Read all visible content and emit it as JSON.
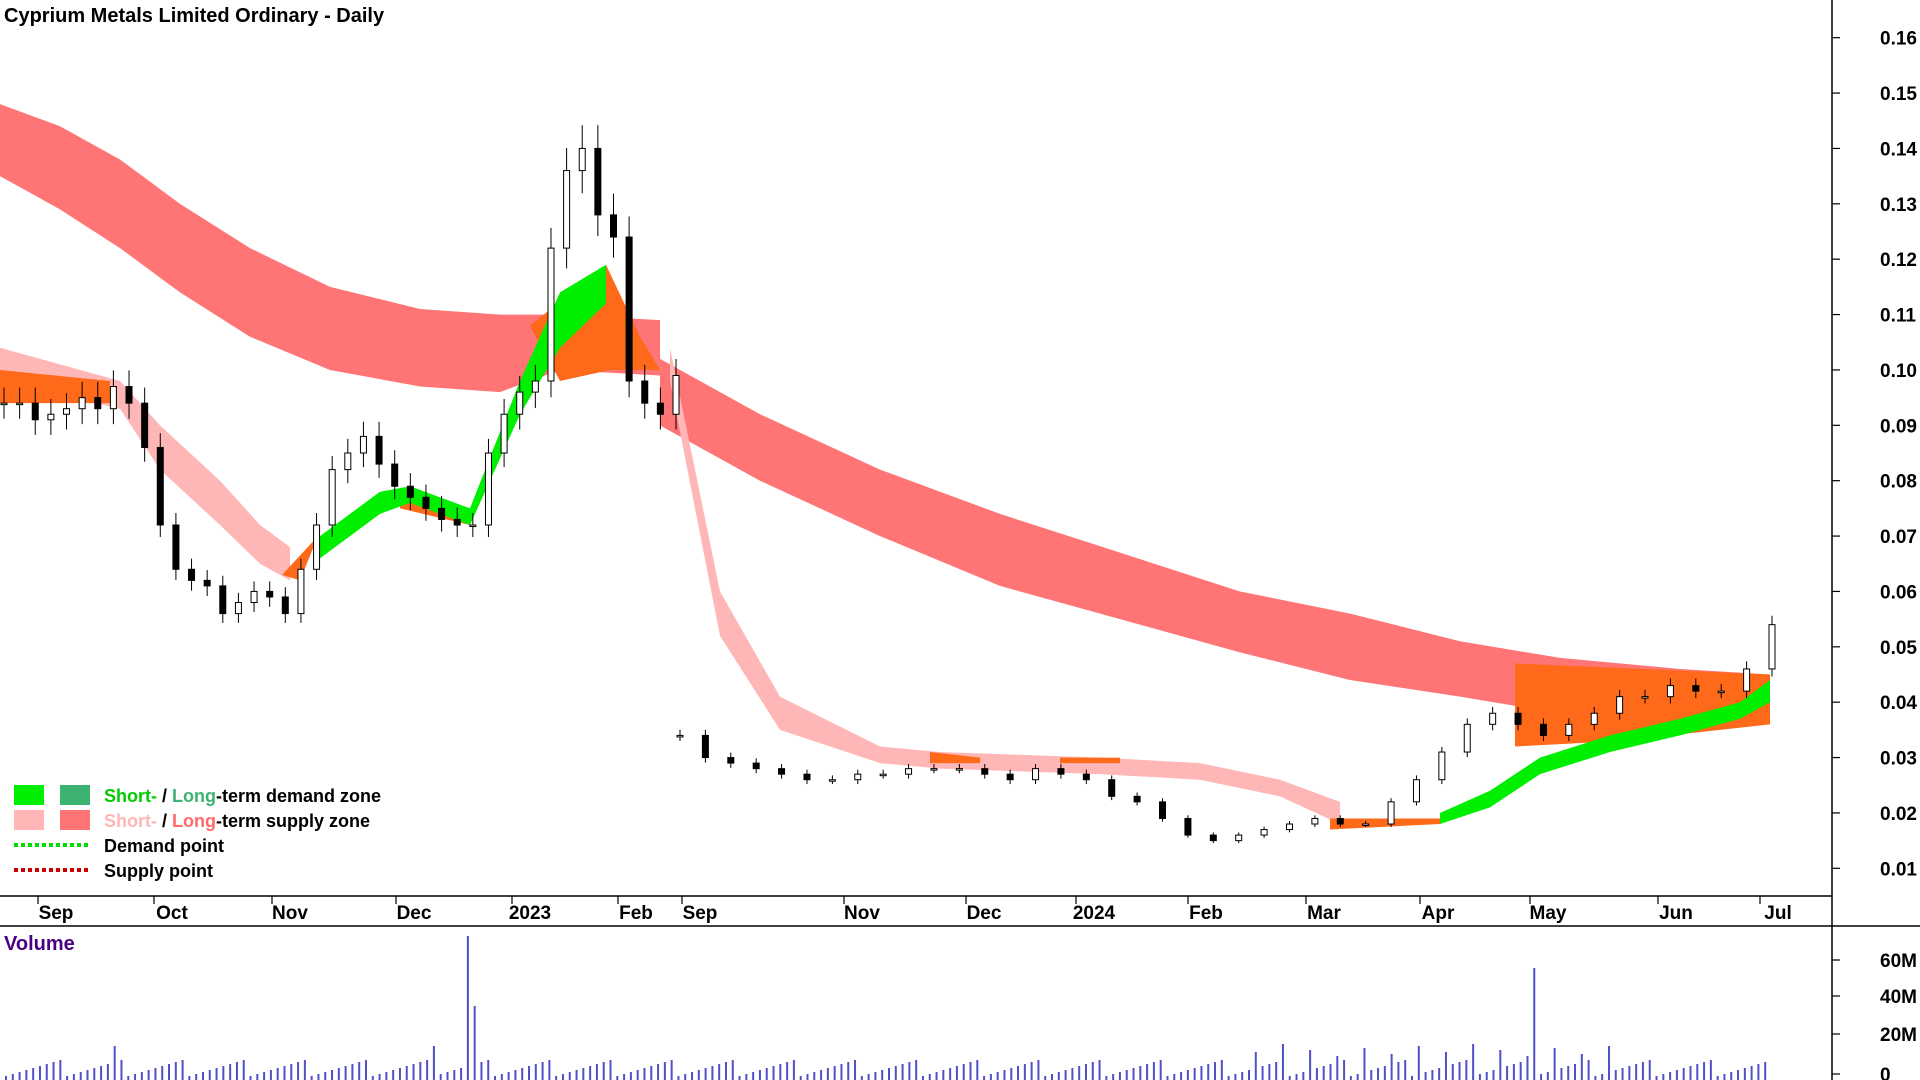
{
  "chart_data": {
    "type": "candlestick",
    "title": "Cyprium Metals Limited Ordinary - Daily",
    "y_axis": {
      "ticks": [
        "0.16",
        "0.15",
        "0.14",
        "0.13",
        "0.12",
        "0.11",
        "0.10",
        "0.09",
        "0.08",
        "0.07",
        "0.06",
        "0.05",
        "0.04",
        "0.03",
        "0.02",
        "0.01"
      ],
      "ylim": [
        0.005,
        0.165
      ],
      "position": "right"
    },
    "x_axis": {
      "ticks": [
        "Sep",
        "Oct",
        "Nov",
        "Dec",
        "2023",
        "Feb",
        "Sep",
        "Nov",
        "Dec",
        "2024",
        "Feb",
        "Mar",
        "Apr",
        "May",
        "Jun",
        "Jul"
      ]
    },
    "price_close_approx": [
      0.094,
      0.094,
      0.091,
      0.092,
      0.093,
      0.095,
      0.093,
      0.097,
      0.094,
      0.086,
      0.072,
      0.064,
      0.062,
      0.061,
      0.056,
      0.058,
      0.06,
      0.059,
      0.056,
      0.064,
      0.072,
      0.082,
      0.085,
      0.088,
      0.083,
      0.079,
      0.077,
      0.075,
      0.073,
      0.072,
      0.072,
      0.085,
      0.092,
      0.096,
      0.098,
      0.122,
      0.136,
      0.14,
      0.128,
      0.124,
      0.098,
      0.094,
      0.092,
      0.099,
      0.034,
      0.03,
      0.029,
      0.028,
      0.027,
      0.026,
      0.026,
      0.027,
      0.027,
      0.028,
      0.028,
      0.028,
      0.027,
      0.026,
      0.028,
      0.027,
      0.026,
      0.023,
      0.022,
      0.019,
      0.016,
      0.015,
      0.016,
      0.017,
      0.018,
      0.019,
      0.018,
      0.018,
      0.022,
      0.026,
      0.031,
      0.036,
      0.038,
      0.036,
      0.034,
      0.036,
      0.038,
      0.041,
      0.041,
      0.043,
      0.042,
      0.042,
      0.046,
      0.054
    ],
    "long_term_supply_zone": {
      "upper": [
        0.148,
        0.144,
        0.138,
        0.13,
        0.122,
        0.115,
        0.111,
        0.11,
        0.11,
        0.109,
        0.102,
        0.092,
        0.082,
        0.074,
        0.067,
        0.06,
        0.056,
        0.051,
        0.048,
        0.046,
        0.045
      ],
      "lower": [
        0.135,
        0.129,
        0.122,
        0.114,
        0.106,
        0.1,
        0.097,
        0.096,
        0.1,
        0.099,
        0.09,
        0.08,
        0.07,
        0.061,
        0.055,
        0.049,
        0.044,
        0.041,
        0.038,
        0.037,
        0.036
      ]
    },
    "short_term_supply_zone": {
      "upper": [
        0.104,
        0.098,
        0.09,
        0.08,
        0.072,
        0.068,
        0.104,
        0.06,
        0.041,
        0.032,
        0.031,
        0.03,
        0.029,
        0.026,
        0.022
      ],
      "lower": [
        0.098,
        0.093,
        0.082,
        0.072,
        0.065,
        0.062,
        0.098,
        0.052,
        0.035,
        0.029,
        0.028,
        0.027,
        0.026,
        0.023,
        0.018
      ]
    },
    "short_term_demand_zone": {
      "upper": [
        0.07,
        0.078,
        0.079,
        0.075,
        0.098,
        0.114,
        0.119,
        0.02,
        0.024,
        0.03,
        0.034,
        0.037,
        0.04,
        0.044
      ],
      "lower": [
        0.066,
        0.074,
        0.076,
        0.072,
        0.092,
        0.104,
        0.112,
        0.018,
        0.021,
        0.027,
        0.031,
        0.034,
        0.037,
        0.04
      ]
    },
    "volume": {
      "label": "Volume",
      "ticks": [
        "60M",
        "40M",
        "20M",
        "0"
      ],
      "ylim": [
        0,
        75
      ]
    },
    "legend": [
      {
        "swatches": [
          "#00ee00",
          "#3cb371"
        ],
        "parts": [
          {
            "text": "Short-",
            "color": "#00cc00"
          },
          {
            "text": " / ",
            "color": "#000000"
          },
          {
            "text": "Long",
            "color": "#3cb371"
          },
          {
            "text": "-term demand zone",
            "color": "#000000"
          }
        ]
      },
      {
        "swatches": [
          "#ffb6b6",
          "#ff7474"
        ],
        "parts": [
          {
            "text": "Short-",
            "color": "#ffb6b6"
          },
          {
            "text": " / ",
            "color": "#000000"
          },
          {
            "text": "Long",
            "color": "#ff6a6a"
          },
          {
            "text": "-term supply zone",
            "color": "#000000"
          }
        ]
      },
      {
        "line_color": "#00dd00",
        "text": "Demand point"
      },
      {
        "line_color": "#cc0000",
        "text": "Supply point"
      }
    ],
    "colors": {
      "long_supply": "#ff7474",
      "short_supply": "#ffb6b6",
      "demand": "#00ee00",
      "transition": "#ff6a1a",
      "volume": "#5050c8",
      "candle": "#000000"
    }
  }
}
